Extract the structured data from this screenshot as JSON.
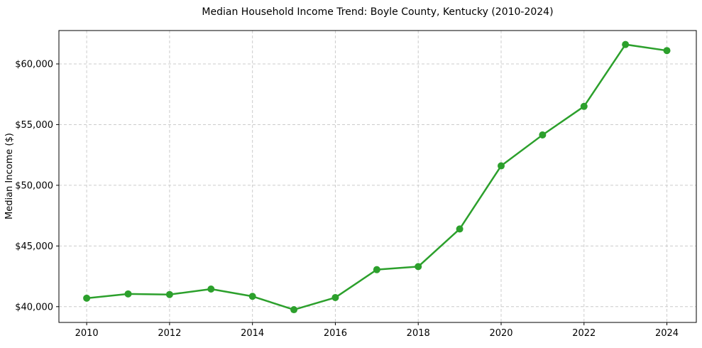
{
  "chart_data": {
    "type": "line",
    "title": "Median Household Income Trend: Boyle County, Kentucky (2010-2024)",
    "ylabel": "Median Income ($)",
    "xlabel": "",
    "x": [
      2010,
      2011,
      2012,
      2013,
      2014,
      2015,
      2016,
      2017,
      2018,
      2019,
      2020,
      2021,
      2022,
      2023,
      2024
    ],
    "values": [
      40700,
      41050,
      41000,
      41450,
      40850,
      39750,
      40750,
      43050,
      43300,
      46400,
      51600,
      54150,
      56500,
      61600,
      61100
    ],
    "xticks": [
      2010,
      2012,
      2014,
      2016,
      2018,
      2020,
      2022,
      2024
    ],
    "xtick_labels": [
      "2010",
      "2012",
      "2014",
      "2016",
      "2018",
      "2020",
      "2022",
      "2024"
    ],
    "yticks": [
      40000,
      45000,
      50000,
      55000,
      60000
    ],
    "ytick_labels": [
      "$40,000",
      "$45,000",
      "$50,000",
      "$55,000",
      "$60,000"
    ],
    "xlim": [
      2009.33,
      2024.71
    ],
    "ylim": [
      38700,
      62750
    ],
    "grid": "both-dashed",
    "legend_position": "none",
    "colors": {
      "line": "#2ca02c",
      "marker": "#2ca02c",
      "grid": "#cccccc",
      "spine": "#000000",
      "text": "#000000",
      "background": "#ffffff"
    }
  }
}
